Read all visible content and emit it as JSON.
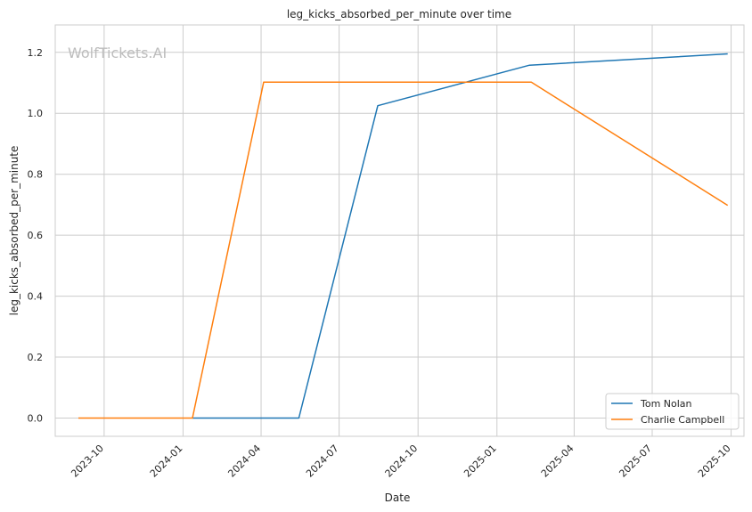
{
  "chart_data": {
    "type": "line",
    "title": "leg_kicks_absorbed_per_minute over time",
    "xlabel": "Date",
    "ylabel": "leg_kicks_absorbed_per_minute",
    "watermark": "WolfTickets.AI",
    "x_range": [
      "2023-08-05",
      "2025-10-16"
    ],
    "ylim": [
      -0.06,
      1.29
    ],
    "x_ticks": [
      "2023-10",
      "2024-01",
      "2024-04",
      "2024-07",
      "2024-10",
      "2025-01",
      "2025-04",
      "2025-07",
      "2025-10"
    ],
    "y_ticks": [
      "0.0",
      "0.2",
      "0.4",
      "0.6",
      "0.8",
      "1.0",
      "1.2"
    ],
    "grid": true,
    "legend_position": "lower-right",
    "series": [
      {
        "name": "Tom Nolan",
        "color": "#1f77b4",
        "points": [
          {
            "x": "2024-01-12",
            "y": 0.0
          },
          {
            "x": "2024-05-15",
            "y": 0.0
          },
          {
            "x": "2024-08-15",
            "y": 1.025
          },
          {
            "x": "2025-02-08",
            "y": 1.158
          },
          {
            "x": "2025-09-27",
            "y": 1.195
          }
        ]
      },
      {
        "name": "Charlie Campbell",
        "color": "#ff7f0e",
        "points": [
          {
            "x": "2023-09-01",
            "y": 0.0
          },
          {
            "x": "2024-01-12",
            "y": 0.0
          },
          {
            "x": "2024-04-04",
            "y": 1.102
          },
          {
            "x": "2025-02-10",
            "y": 1.102
          },
          {
            "x": "2025-09-27",
            "y": 0.698
          }
        ]
      }
    ]
  }
}
